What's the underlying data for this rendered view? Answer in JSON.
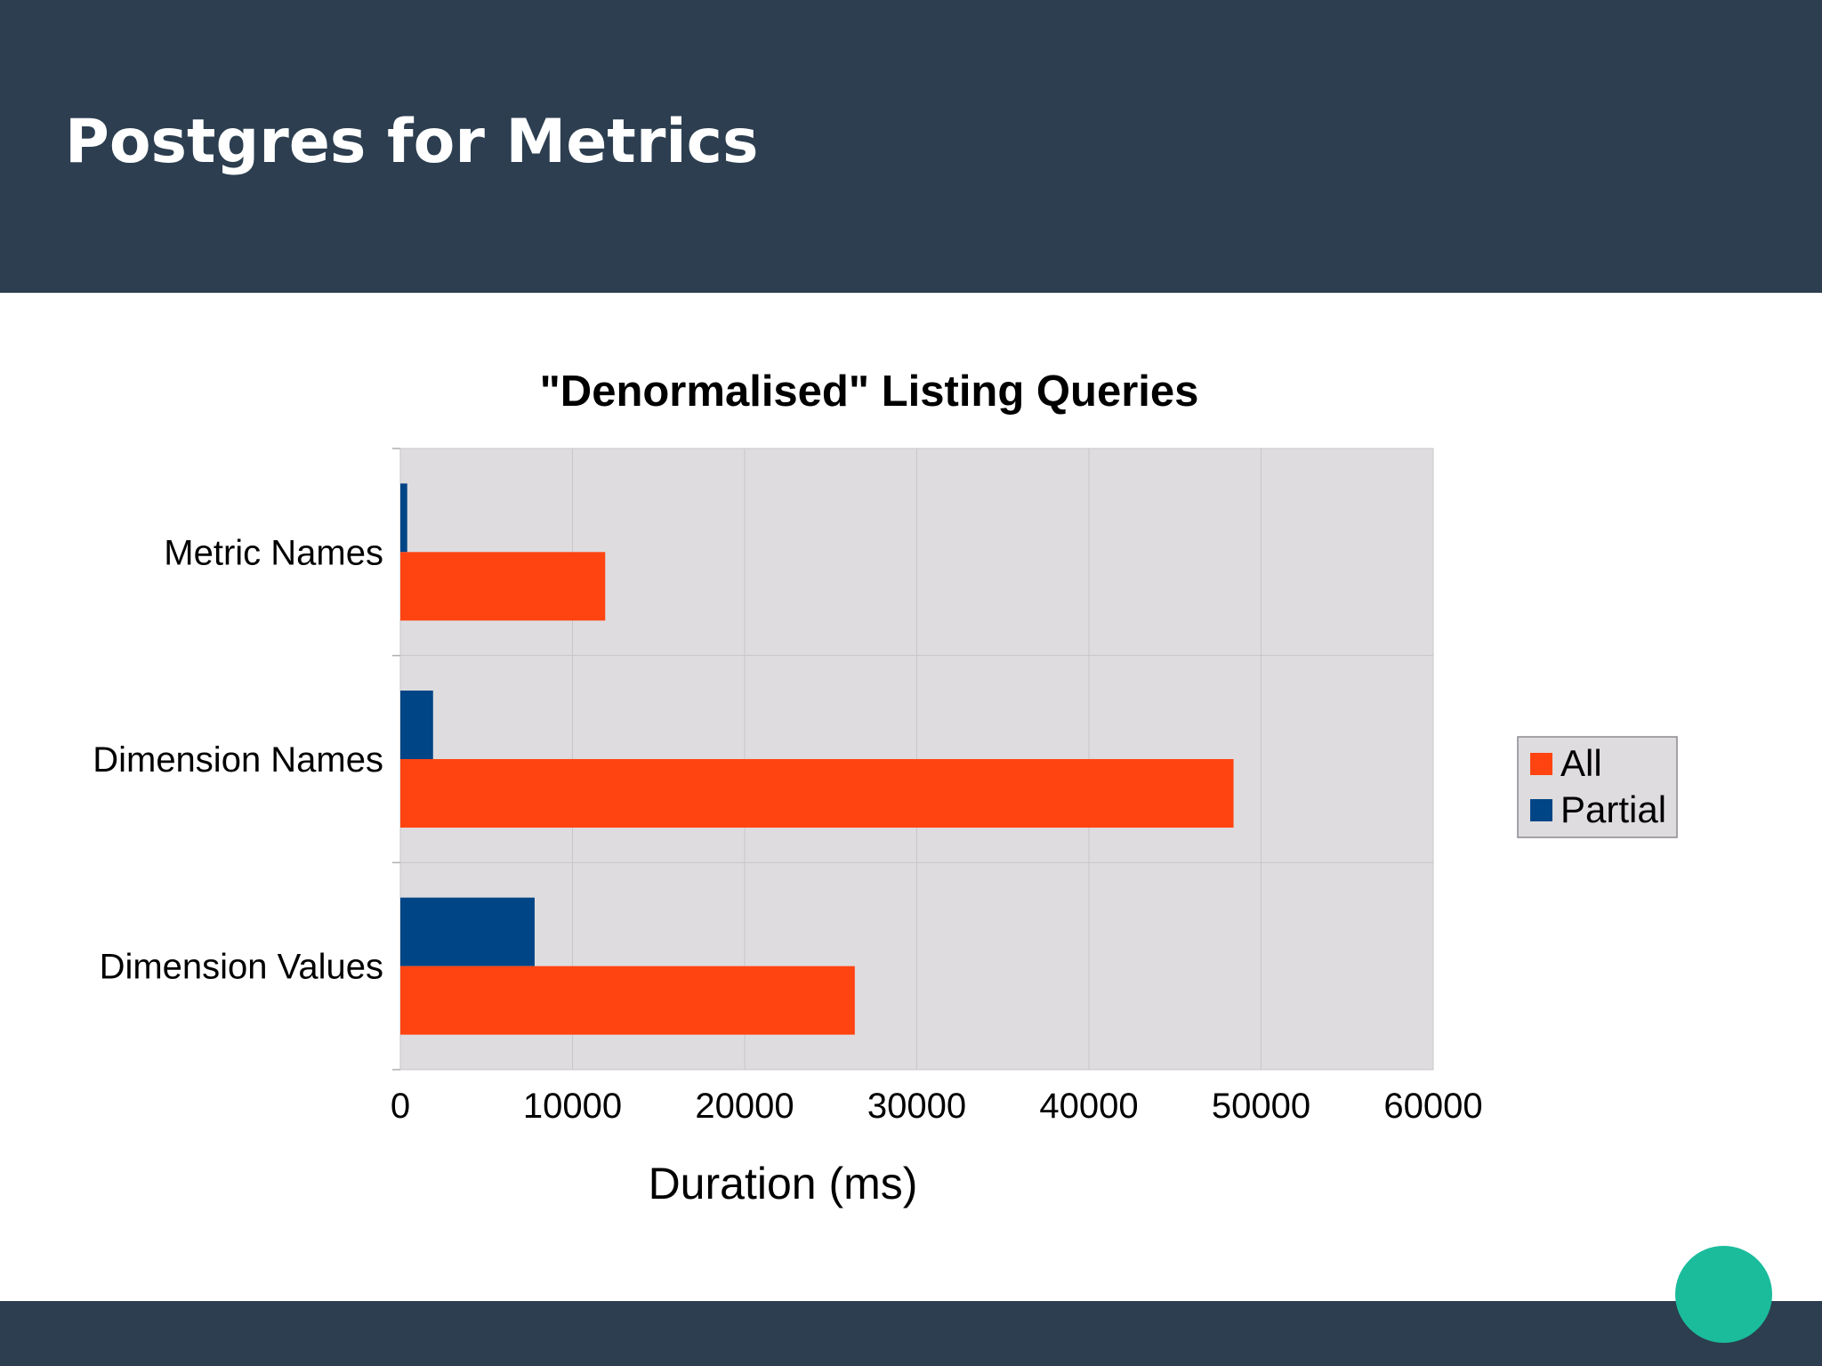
{
  "slide": {
    "title": "Postgres for Metrics"
  },
  "colors": {
    "header_bg": "#2c3e50",
    "plot_bg": "#dedcdf",
    "gridline": "#c8c6c9",
    "accent_dot": "#1abc9c"
  },
  "chart_data": {
    "type": "bar",
    "orientation": "horizontal",
    "title": "\"Denormalised\" Listing Queries",
    "xlabel": "Duration (ms)",
    "ylabel": "",
    "xlim": [
      0,
      60000
    ],
    "xticks": [
      "0",
      "10000",
      "20000",
      "30000",
      "40000",
      "50000",
      "60000"
    ],
    "categories": [
      "Metric Names",
      "Dimension Names",
      "Dimension Values"
    ],
    "series": [
      {
        "name": "All",
        "color": "#ff4411",
        "values": [
          11900,
          48400,
          26400
        ]
      },
      {
        "name": "Partial",
        "color": "#004586",
        "values": [
          400,
          1900,
          7800
        ]
      }
    ],
    "grid": true,
    "legend": "right"
  }
}
